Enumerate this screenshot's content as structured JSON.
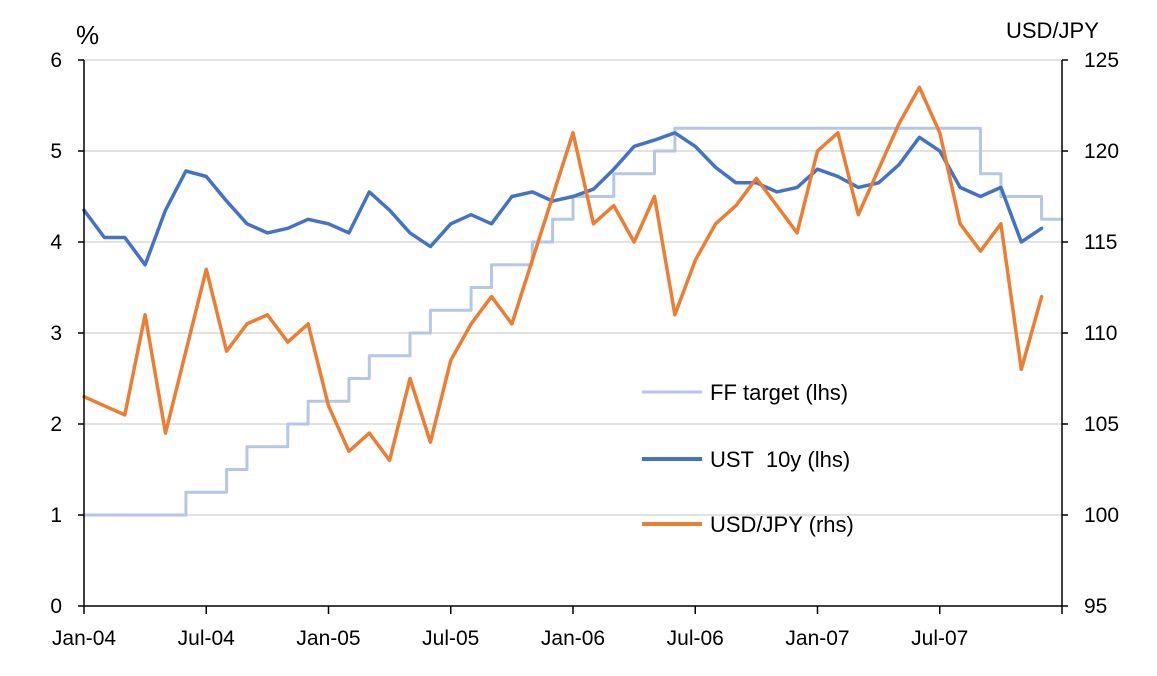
{
  "chart_data": {
    "type": "line",
    "left_unit": "%",
    "right_unit": "USD/JPY",
    "x_ticks": [
      "Jan-04",
      "Jul-04",
      "Jan-05",
      "Jul-05",
      "Jan-06",
      "Jul-06",
      "Jan-07",
      "Jul-07"
    ],
    "x_range": [
      "2004-01",
      "2007-12"
    ],
    "y_left": {
      "ticks": [
        "0",
        "1",
        "2",
        "3",
        "4",
        "5",
        "6"
      ],
      "range": [
        0,
        6
      ]
    },
    "y_right": {
      "ticks": [
        "95",
        "100",
        "105",
        "110",
        "115",
        "120",
        "125"
      ],
      "range": [
        95,
        125
      ]
    },
    "grid": "horizontal",
    "legend_position": "center-right",
    "series": [
      {
        "name": "FF target (lhs)",
        "axis": "left",
        "color": "#B4C7E7",
        "style": "step",
        "points": [
          [
            "2004-01",
            1.0
          ],
          [
            "2004-06",
            1.25
          ],
          [
            "2004-08",
            1.5
          ],
          [
            "2004-09",
            1.75
          ],
          [
            "2004-11",
            2.0
          ],
          [
            "2004-12",
            2.25
          ],
          [
            "2005-02",
            2.5
          ],
          [
            "2005-03",
            2.75
          ],
          [
            "2005-05",
            3.0
          ],
          [
            "2005-06",
            3.25
          ],
          [
            "2005-08",
            3.5
          ],
          [
            "2005-09",
            3.75
          ],
          [
            "2005-11",
            4.0
          ],
          [
            "2005-12",
            4.25
          ],
          [
            "2006-01",
            4.5
          ],
          [
            "2006-03",
            4.75
          ],
          [
            "2006-05",
            5.0
          ],
          [
            "2006-06",
            5.25
          ],
          [
            "2007-09",
            4.75
          ],
          [
            "2007-10",
            4.5
          ],
          [
            "2007-12",
            4.25
          ]
        ]
      },
      {
        "name": "UST  10y (lhs)",
        "axis": "left",
        "color": "#4472C4",
        "style": "line",
        "points": [
          [
            "2004-01",
            4.35
          ],
          [
            "2004-02",
            4.05
          ],
          [
            "2004-03",
            4.05
          ],
          [
            "2004-04",
            3.75
          ],
          [
            "2004-05",
            4.35
          ],
          [
            "2004-06",
            4.78
          ],
          [
            "2004-07",
            4.72
          ],
          [
            "2004-08",
            4.45
          ],
          [
            "2004-09",
            4.2
          ],
          [
            "2004-10",
            4.1
          ],
          [
            "2004-11",
            4.15
          ],
          [
            "2004-12",
            4.25
          ],
          [
            "2005-01",
            4.2
          ],
          [
            "2005-02",
            4.1
          ],
          [
            "2005-03",
            4.55
          ],
          [
            "2005-04",
            4.35
          ],
          [
            "2005-05",
            4.1
          ],
          [
            "2005-06",
            3.95
          ],
          [
            "2005-07",
            4.2
          ],
          [
            "2005-08",
            4.3
          ],
          [
            "2005-09",
            4.2
          ],
          [
            "2005-10",
            4.5
          ],
          [
            "2005-11",
            4.55
          ],
          [
            "2005-12",
            4.45
          ],
          [
            "2006-01",
            4.5
          ],
          [
            "2006-02",
            4.58
          ],
          [
            "2006-03",
            4.8
          ],
          [
            "2006-04",
            5.05
          ],
          [
            "2006-05",
            5.12
          ],
          [
            "2006-06",
            5.2
          ],
          [
            "2006-07",
            5.05
          ],
          [
            "2006-08",
            4.82
          ],
          [
            "2006-09",
            4.65
          ],
          [
            "2006-10",
            4.65
          ],
          [
            "2006-11",
            4.55
          ],
          [
            "2006-12",
            4.6
          ],
          [
            "2007-01",
            4.8
          ],
          [
            "2007-02",
            4.72
          ],
          [
            "2007-03",
            4.6
          ],
          [
            "2007-04",
            4.65
          ],
          [
            "2007-05",
            4.85
          ],
          [
            "2007-06",
            5.15
          ],
          [
            "2007-07",
            5.0
          ],
          [
            "2007-08",
            4.6
          ],
          [
            "2007-09",
            4.5
          ],
          [
            "2007-10",
            4.6
          ],
          [
            "2007-11",
            4.0
          ],
          [
            "2007-12",
            4.15
          ]
        ]
      },
      {
        "name": "USD/JPY (rhs)",
        "axis": "right",
        "color": "#ED7D31",
        "style": "line",
        "points": [
          [
            "2004-01",
            106.5
          ],
          [
            "2004-02",
            106.0
          ],
          [
            "2004-03",
            105.5
          ],
          [
            "2004-04",
            111.0
          ],
          [
            "2004-05",
            104.5
          ],
          [
            "2004-06",
            109.0
          ],
          [
            "2004-07",
            113.5
          ],
          [
            "2004-08",
            109.0
          ],
          [
            "2004-09",
            110.5
          ],
          [
            "2004-10",
            111.0
          ],
          [
            "2004-11",
            109.5
          ],
          [
            "2004-12",
            110.5
          ],
          [
            "2005-01",
            106.0
          ],
          [
            "2005-02",
            103.5
          ],
          [
            "2005-03",
            104.5
          ],
          [
            "2005-04",
            103.0
          ],
          [
            "2005-05",
            107.5
          ],
          [
            "2005-06",
            104.0
          ],
          [
            "2005-07",
            108.5
          ],
          [
            "2005-08",
            110.5
          ],
          [
            "2005-09",
            112.0
          ],
          [
            "2005-10",
            110.5
          ],
          [
            "2005-11",
            114.0
          ],
          [
            "2005-12",
            117.5
          ],
          [
            "2006-01",
            121.0
          ],
          [
            "2006-02",
            116.0
          ],
          [
            "2006-03",
            117.0
          ],
          [
            "2006-04",
            115.0
          ],
          [
            "2006-05",
            117.5
          ],
          [
            "2006-06",
            111.0
          ],
          [
            "2006-07",
            114.0
          ],
          [
            "2006-08",
            116.0
          ],
          [
            "2006-09",
            117.0
          ],
          [
            "2006-10",
            118.5
          ],
          [
            "2006-11",
            117.0
          ],
          [
            "2006-12",
            115.5
          ],
          [
            "2007-01",
            120.0
          ],
          [
            "2007-02",
            121.0
          ],
          [
            "2007-03",
            116.5
          ],
          [
            "2007-04",
            119.0
          ],
          [
            "2007-05",
            121.5
          ],
          [
            "2007-06",
            123.5
          ],
          [
            "2007-07",
            121.0
          ],
          [
            "2007-08",
            116.0
          ],
          [
            "2007-09",
            114.5
          ],
          [
            "2007-10",
            116.0
          ],
          [
            "2007-11",
            108.0
          ],
          [
            "2007-12",
            112.0
          ]
        ]
      }
    ]
  }
}
